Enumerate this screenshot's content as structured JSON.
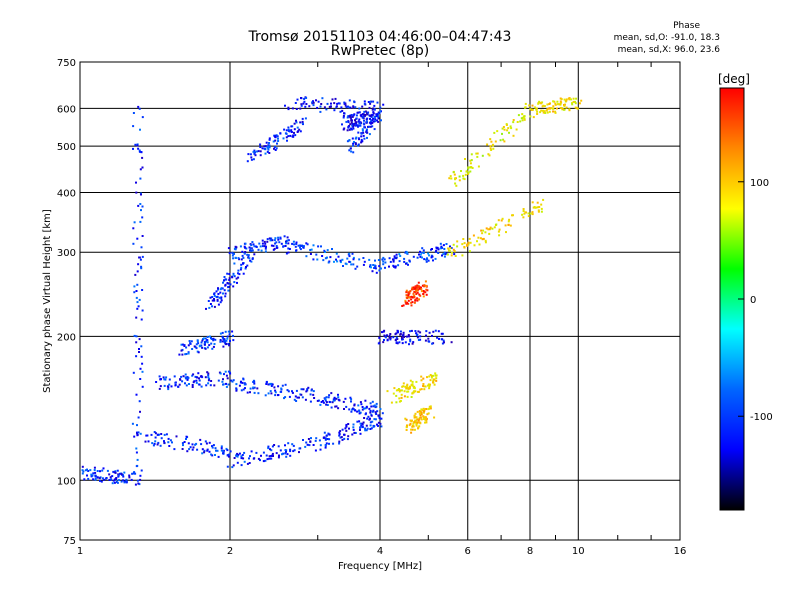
{
  "chart_data": {
    "type": "scatter",
    "title": "Tromsø 20151103 04:46:00–04:47:43",
    "subtitle": "RwPretec (8p)",
    "xlabel": "Frequency [MHz]",
    "ylabel": "Stationary phase Virtual Height [km]",
    "x_scale": "log",
    "y_scale": "log",
    "xlim": [
      1,
      16
    ],
    "ylim": [
      75,
      750
    ],
    "x_ticks": [
      "1",
      "2",
      "4",
      "6",
      "8",
      "10",
      "16"
    ],
    "y_ticks": [
      "75",
      "100",
      "200",
      "300",
      "400",
      "500",
      "600",
      "750"
    ],
    "grid": true,
    "colorbar": {
      "label": "[deg]",
      "ticks": [
        "100",
        "0",
        "-100"
      ],
      "colors": [
        "#ff0000",
        "#ff8800",
        "#ffff00",
        "#00ff00",
        "#00ffff",
        "#0066ff",
        "#0000ff",
        "#000000"
      ]
    },
    "phase_stats": {
      "heading": "Phase",
      "o_mode": "mean, sd,O: -91.0, 18.3",
      "x_mode": "mean, sd,X: 96.0, 23.6"
    },
    "traces": [
      {
        "freq": [
          1.0,
          1.3
        ],
        "height": [
          105,
          100
        ],
        "phase": -100
      },
      {
        "freq": [
          1.3,
          2.0
        ],
        "height": [
          125,
          115
        ],
        "phase": -100
      },
      {
        "freq": [
          2.0,
          3.0
        ],
        "height": [
          110,
          120
        ],
        "phase": -100
      },
      {
        "freq": [
          3.0,
          4.0
        ],
        "height": [
          120,
          135
        ],
        "phase": -100
      },
      {
        "freq": [
          1.4,
          2.0
        ],
        "height": [
          160,
          165
        ],
        "phase": -100
      },
      {
        "freq": [
          2.0,
          3.0
        ],
        "height": [
          160,
          150
        ],
        "phase": -100
      },
      {
        "freq": [
          3.0,
          4.0
        ],
        "height": [
          150,
          140
        ],
        "phase": -100
      },
      {
        "freq": [
          1.6,
          2.0
        ],
        "height": [
          190,
          200
        ],
        "phase": -95
      },
      {
        "freq": [
          1.8,
          2.2
        ],
        "height": [
          230,
          300
        ],
        "phase": -100
      },
      {
        "freq": [
          2.0,
          2.6
        ],
        "height": [
          300,
          320
        ],
        "phase": -100
      },
      {
        "freq": [
          2.6,
          4.0
        ],
        "height": [
          310,
          280
        ],
        "phase": -90
      },
      {
        "freq": [
          4.0,
          5.5
        ],
        "height": [
          285,
          305
        ],
        "phase": -90
      },
      {
        "freq": [
          2.2,
          2.8
        ],
        "height": [
          480,
          560
        ],
        "phase": -100
      },
      {
        "freq": [
          2.6,
          4.0
        ],
        "height": [
          620,
          600
        ],
        "phase": -110
      },
      {
        "freq": [
          3.5,
          4.0
        ],
        "height": [
          500,
          600
        ],
        "phase": -100
      },
      {
        "freq": [
          5.5,
          8.5
        ],
        "height": [
          300,
          380
        ],
        "phase": 100
      },
      {
        "freq": [
          5.5,
          8.0
        ],
        "height": [
          420,
          600
        ],
        "phase": 90
      },
      {
        "freq": [
          8.0,
          10.0
        ],
        "height": [
          600,
          620
        ],
        "phase": 100
      },
      {
        "freq": [
          4.0,
          5.5
        ],
        "height": [
          200,
          200
        ],
        "phase": -110
      },
      {
        "freq": [
          4.2,
          5.2
        ],
        "height": [
          150,
          165
        ],
        "phase": 100
      },
      {
        "freq": [
          4.5,
          5.0
        ],
        "height": [
          130,
          140
        ],
        "phase": 110
      },
      {
        "freq": [
          4.5,
          4.9
        ],
        "height": [
          240,
          255
        ],
        "phase": 160
      },
      {
        "freq": [
          1.3,
          1.3
        ],
        "height": [
          100,
          600
        ],
        "phase": -100
      },
      {
        "freq": [
          3.4,
          3.8
        ],
        "height": [
          560,
          580
        ],
        "phase": -110
      }
    ]
  }
}
